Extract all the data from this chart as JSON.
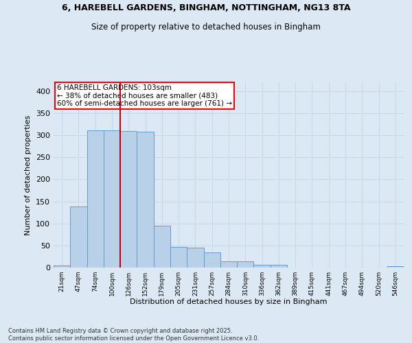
{
  "title_line1": "6, HAREBELL GARDENS, BINGHAM, NOTTINGHAM, NG13 8TA",
  "title_line2": "Size of property relative to detached houses in Bingham",
  "xlabel": "Distribution of detached houses by size in Bingham",
  "ylabel": "Number of detached properties",
  "categories": [
    "21sqm",
    "47sqm",
    "74sqm",
    "100sqm",
    "126sqm",
    "152sqm",
    "179sqm",
    "205sqm",
    "231sqm",
    "257sqm",
    "284sqm",
    "310sqm",
    "336sqm",
    "362sqm",
    "389sqm",
    "415sqm",
    "441sqm",
    "467sqm",
    "494sqm",
    "520sqm",
    "546sqm"
  ],
  "values": [
    4,
    139,
    311,
    311,
    309,
    308,
    95,
    46,
    45,
    34,
    14,
    14,
    6,
    6,
    0,
    0,
    0,
    0,
    0,
    0,
    3
  ],
  "bar_color": "#b8d0e8",
  "bar_edge_color": "#6699cc",
  "vline_color": "#cc0000",
  "vline_x_index": 3,
  "annotation_box_text": "6 HAREBELL GARDENS: 103sqm\n← 38% of detached houses are smaller (483)\n60% of semi-detached houses are larger (761) →",
  "background_color": "#dce9f5",
  "grid_color": "#c8d8ec",
  "footer_line1": "Contains HM Land Registry data © Crown copyright and database right 2025.",
  "footer_line2": "Contains public sector information licensed under the Open Government Licence v3.0.",
  "ylim": [
    0,
    420
  ],
  "yticks": [
    0,
    50,
    100,
    150,
    200,
    250,
    300,
    350,
    400
  ]
}
